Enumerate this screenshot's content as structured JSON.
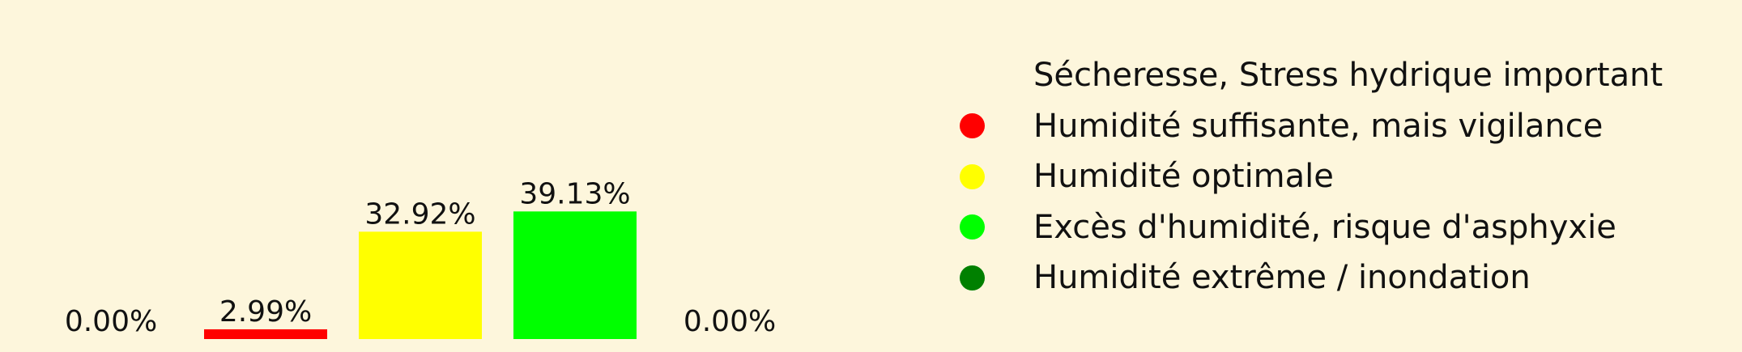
{
  "chart_data": {
    "type": "bar",
    "categories": [
      "Sécheresse, Stress hydrique important",
      "Humidité suffisante, mais vigilance",
      "Humidité optimale",
      "Excès d'humidité, risque d'asphyxie",
      "Humidité extrême / inondation"
    ],
    "values": [
      0.0,
      2.99,
      32.92,
      39.13,
      0.0
    ],
    "value_labels": [
      "0.00%",
      "2.99%",
      "32.92%",
      "39.13%",
      "0.00%"
    ],
    "colors": [
      "#fdf6dc",
      "#ff0000",
      "#ffff00",
      "#00ff00",
      "#008000"
    ],
    "ylim": [
      0,
      40
    ],
    "grid": false,
    "legend_placement": "right"
  },
  "legend": {
    "items": [
      {
        "label": "Sécheresse, Stress hydrique important",
        "color": "#fdf6dc"
      },
      {
        "label": "Humidité suffisante, mais vigilance",
        "color": "#ff0000"
      },
      {
        "label": "Humidité optimale",
        "color": "#ffff00"
      },
      {
        "label": "Excès d'humidité, risque d'asphyxie",
        "color": "#00ff00"
      },
      {
        "label": "Humidité extrême / inondation",
        "color": "#008000"
      }
    ]
  }
}
